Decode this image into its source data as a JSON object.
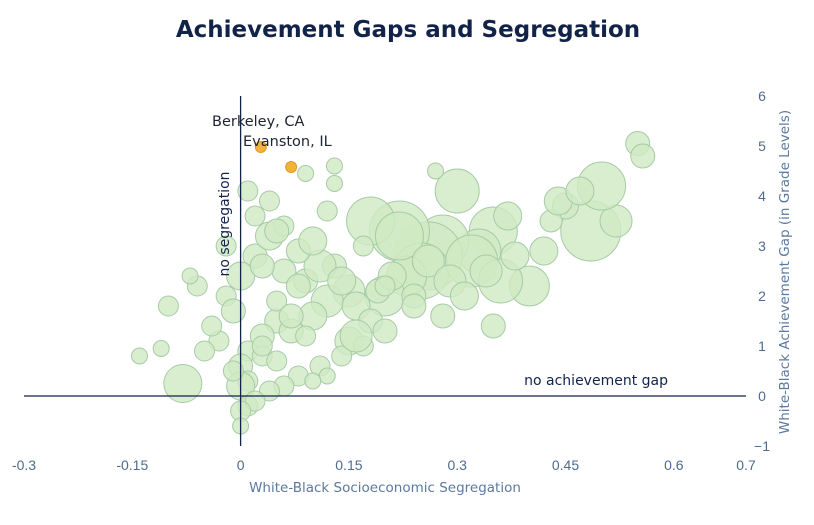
{
  "chart_data": {
    "type": "scatter",
    "title": "Achievement Gaps and Segregation",
    "xlabel": "White-Black Socioeconomic Segregation",
    "ylabel": "White-Black Achievement Gap (in Grade Levels)",
    "xlim": [
      -0.3,
      0.7
    ],
    "ylim": [
      -1,
      6
    ],
    "x_ticks": [
      "-0.3",
      "-0.15",
      "0",
      "0.15",
      "0.3",
      "0.45",
      "0.6",
      "0.7"
    ],
    "x_tick_values": [
      -0.3,
      -0.15,
      0,
      0.15,
      0.3,
      0.45,
      0.6,
      0.7
    ],
    "y_ticks": [
      "−1",
      "0",
      "1",
      "2",
      "3",
      "4",
      "5",
      "6"
    ],
    "y_tick_values": [
      -1,
      0,
      1,
      2,
      3,
      4,
      5,
      6
    ],
    "y_axis_side": "right",
    "grid": false,
    "legend": "none",
    "reference_lines": [
      {
        "orientation": "vertical",
        "value": 0,
        "label": "no segregation"
      },
      {
        "orientation": "horizontal",
        "value": 0,
        "label": "no achievement gap"
      }
    ],
    "highlighted_points": [
      {
        "label": "Berkeley, CA",
        "x": 0.028,
        "y": 4.98
      },
      {
        "label": "Evanston, IL",
        "x": 0.07,
        "y": 4.58
      }
    ],
    "series": [
      {
        "points_note": "school districts; bubble size = district size",
        "x": [
          0.55,
          0.557,
          0.485,
          0.52,
          0.5,
          0.45,
          0.43,
          0.35,
          0.33,
          0.28,
          0.3,
          0.37,
          0.26,
          0.22,
          0.18,
          0.25,
          0.32,
          0.4,
          0.36,
          0.23,
          0.2,
          0.15,
          0.12,
          0.1,
          0.17,
          0.13,
          0.09,
          -0.08,
          0.13,
          0.09,
          0.27,
          0.22,
          0.05,
          0.03,
          0.01,
          0.0,
          0.02,
          -0.02,
          -0.03,
          0.04,
          0.06,
          0.08,
          0.11,
          0.14,
          0.16,
          0.19,
          0.21,
          0.24,
          0.05,
          0.07,
          0.03,
          0.01,
          0.0,
          -0.01,
          0.02,
          0.04,
          -0.02,
          0.06,
          0.08,
          0.1,
          0.12,
          0.03,
          0.05,
          0.07,
          0.09,
          0.0,
          0.01,
          -0.04,
          -0.05,
          -0.06,
          0.15,
          0.18,
          0.26,
          0.29,
          0.34,
          0.38,
          0.42,
          0.44,
          0.47,
          0.31,
          0.28,
          0.24,
          0.2,
          0.17,
          0.14,
          0.11,
          0.08,
          0.06,
          0.04,
          0.02,
          0.0,
          -0.01,
          0.03,
          0.05,
          0.01,
          0.0,
          -0.11,
          -0.14,
          -0.1,
          -0.07,
          0.12,
          0.1,
          0.13,
          0.2,
          0.35,
          0.16
        ],
        "y": [
          5.05,
          4.8,
          3.3,
          3.5,
          4.2,
          3.8,
          3.5,
          3.3,
          2.9,
          3.1,
          4.1,
          3.6,
          2.8,
          3.3,
          3.5,
          2.5,
          2.7,
          2.2,
          2.3,
          2.4,
          2.0,
          2.1,
          1.9,
          1.6,
          3.0,
          2.6,
          2.3,
          0.25,
          4.25,
          4.45,
          4.5,
          3.2,
          1.5,
          1.2,
          0.9,
          0.6,
          2.8,
          2.0,
          1.1,
          3.2,
          2.5,
          2.2,
          2.6,
          2.3,
          1.8,
          2.1,
          2.4,
          2.0,
          1.9,
          1.3,
          0.8,
          0.3,
          2.4,
          1.7,
          3.6,
          3.9,
          3.0,
          3.4,
          2.9,
          3.1,
          3.7,
          1.0,
          0.7,
          1.6,
          1.2,
          0.2,
          -0.2,
          1.4,
          0.9,
          2.2,
          1.1,
          1.5,
          2.7,
          2.3,
          2.5,
          2.8,
          2.9,
          3.9,
          4.1,
          2.0,
          1.6,
          1.8,
          1.3,
          1.0,
          0.8,
          0.6,
          0.4,
          0.2,
          0.1,
          -0.1,
          -0.3,
          0.5,
          2.6,
          3.3,
          4.1,
          -0.6,
          0.95,
          0.8,
          1.8,
          2.4,
          0.4,
          0.3,
          4.6,
          2.2,
          1.4,
          1.2
        ],
        "size": [
          12,
          12,
          30,
          16,
          24,
          13,
          11,
          24,
          22,
          26,
          22,
          14,
          34,
          30,
          24,
          28,
          26,
          20,
          22,
          20,
          20,
          16,
          16,
          14,
          10,
          12,
          12,
          19,
          8,
          8,
          8,
          24,
          12,
          12,
          10,
          12,
          12,
          10,
          10,
          14,
          12,
          12,
          16,
          14,
          14,
          12,
          14,
          12,
          10,
          12,
          10,
          10,
          14,
          12,
          10,
          10,
          10,
          10,
          12,
          14,
          10,
          10,
          10,
          12,
          10,
          14,
          10,
          10,
          10,
          10,
          14,
          12,
          16,
          16,
          16,
          14,
          14,
          14,
          14,
          14,
          12,
          12,
          12,
          10,
          10,
          10,
          10,
          10,
          10,
          10,
          10,
          10,
          12,
          12,
          10,
          8,
          8,
          8,
          10,
          8,
          8,
          8,
          8,
          10,
          12,
          16
        ]
      }
    ]
  }
}
